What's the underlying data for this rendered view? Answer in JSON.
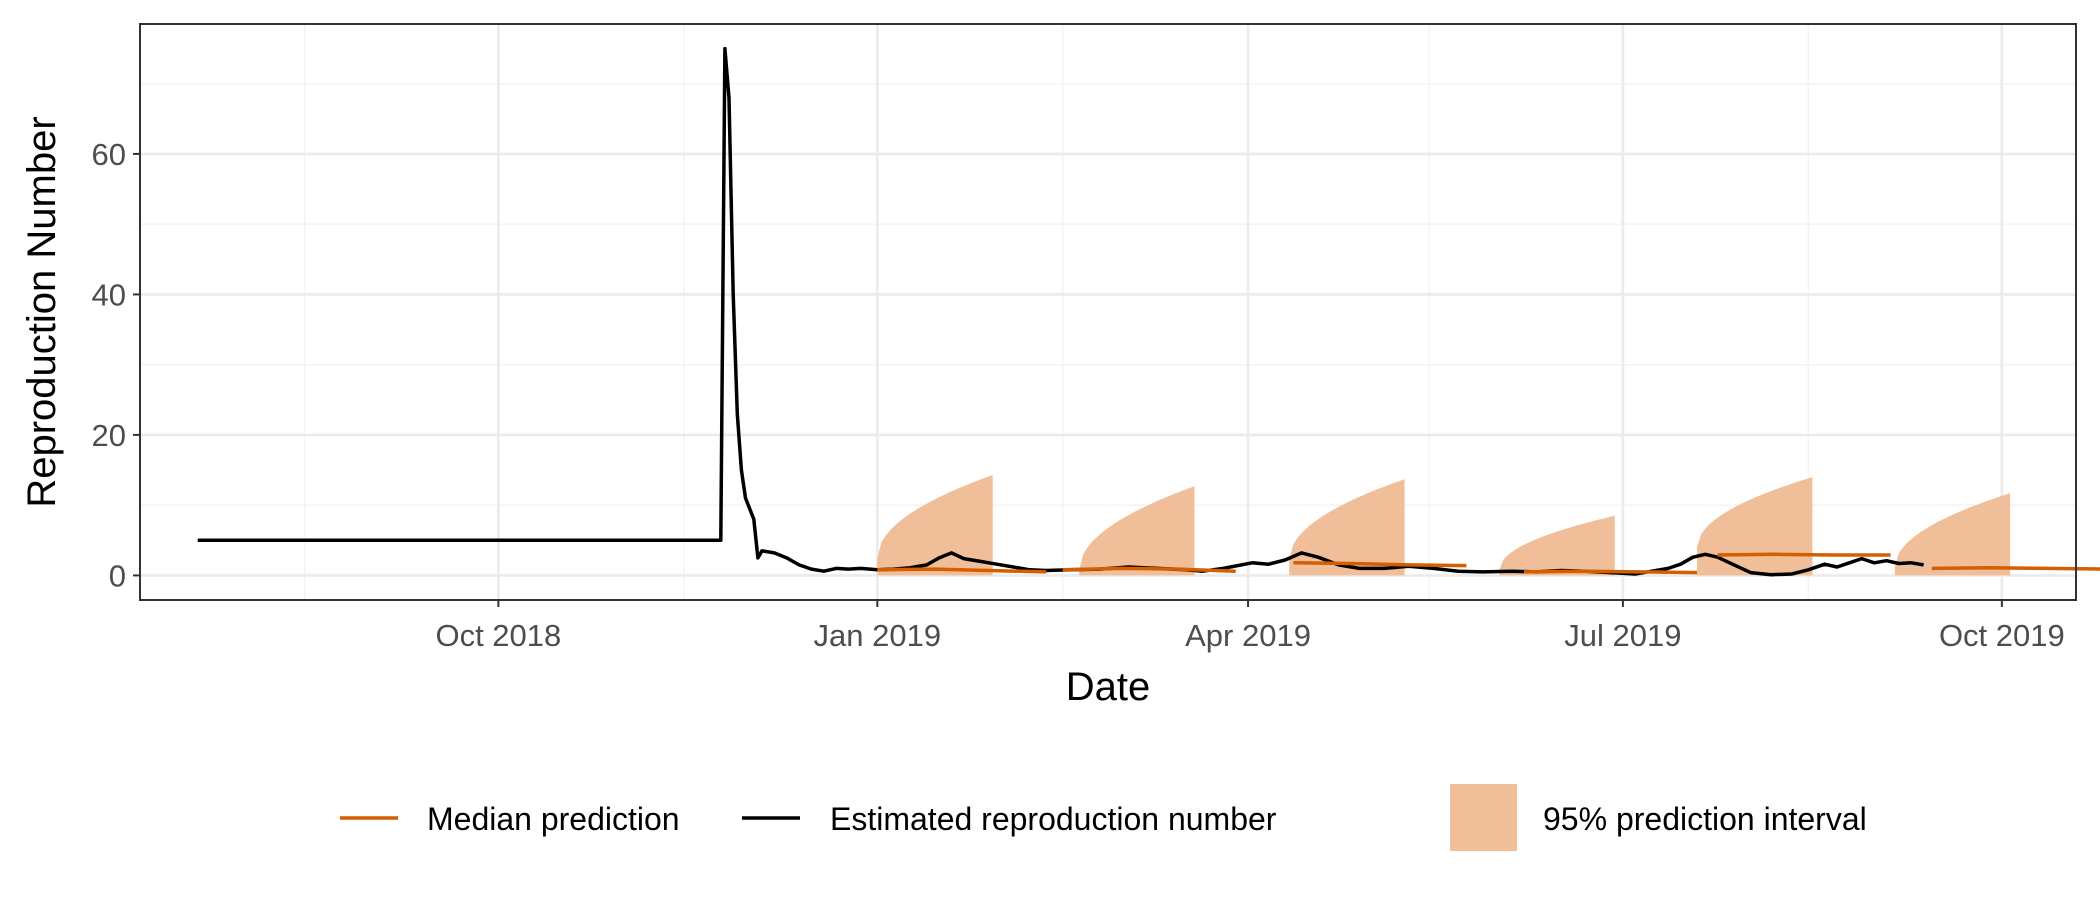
{
  "chart_data": {
    "type": "line",
    "title": "",
    "xlabel": "Date",
    "ylabel": "Reproduction Number",
    "x_type": "date",
    "xlim": [
      "2018-07-06",
      "2019-10-19"
    ],
    "ylim": [
      -3.5,
      78.5
    ],
    "x_ticks": [
      {
        "date": "2018-10-01",
        "label": "Oct 2018"
      },
      {
        "date": "2019-01-01",
        "label": "Jan 2019"
      },
      {
        "date": "2019-04-01",
        "label": "Apr 2019"
      },
      {
        "date": "2019-07-01",
        "label": "Jul 2019"
      },
      {
        "date": "2019-10-01",
        "label": "Oct 2019"
      }
    ],
    "x_minor_ticks": [
      "2018-08-15",
      "2018-11-15",
      "2019-02-15",
      "2019-05-15",
      "2019-08-15"
    ],
    "y_ticks": [
      0,
      20,
      40,
      60
    ],
    "y_minor_ticks": [
      10,
      30,
      50,
      70
    ],
    "grid": true,
    "legend_position": "bottom",
    "colors": {
      "estimated": "#000000",
      "median": "#d55e00",
      "interval": "#f0bf99",
      "panel_border": "#333333"
    },
    "legend": [
      {
        "key": "median",
        "label": "Median prediction",
        "symbol": "line"
      },
      {
        "key": "estimated",
        "label": "Estimated reproduction number",
        "symbol": "line"
      },
      {
        "key": "interval",
        "label": "95% prediction interval",
        "symbol": "fill"
      }
    ],
    "series": [
      {
        "name": "Estimated reproduction number",
        "key": "estimated",
        "points": [
          [
            "2018-07-20",
            5.0
          ],
          [
            "2018-11-24",
            5.0
          ],
          [
            "2018-11-25",
            75.0
          ],
          [
            "2018-11-26",
            68.0
          ],
          [
            "2018-11-27",
            40.0
          ],
          [
            "2018-11-28",
            23.0
          ],
          [
            "2018-11-29",
            15.0
          ],
          [
            "2018-11-30",
            11.0
          ],
          [
            "2018-12-02",
            8.0
          ],
          [
            "2018-12-03",
            2.5
          ],
          [
            "2018-12-04",
            3.5
          ],
          [
            "2018-12-07",
            3.2
          ],
          [
            "2018-12-10",
            2.5
          ],
          [
            "2018-12-13",
            1.5
          ],
          [
            "2018-12-16",
            0.9
          ],
          [
            "2018-12-19",
            0.6
          ],
          [
            "2018-12-22",
            1.0
          ],
          [
            "2018-12-25",
            0.9
          ],
          [
            "2018-12-28",
            1.0
          ],
          [
            "2019-01-01",
            0.8
          ],
          [
            "2019-01-05",
            0.9
          ],
          [
            "2019-01-09",
            1.1
          ],
          [
            "2019-01-13",
            1.5
          ],
          [
            "2019-01-16",
            2.5
          ],
          [
            "2019-01-19",
            3.2
          ],
          [
            "2019-01-22",
            2.4
          ],
          [
            "2019-01-26",
            2.0
          ],
          [
            "2019-01-30",
            1.6
          ],
          [
            "2019-02-03",
            1.2
          ],
          [
            "2019-02-07",
            0.8
          ],
          [
            "2019-02-11",
            0.7
          ],
          [
            "2019-02-17",
            0.8
          ],
          [
            "2019-02-24",
            0.9
          ],
          [
            "2019-03-03",
            1.2
          ],
          [
            "2019-03-10",
            1.0
          ],
          [
            "2019-03-17",
            0.8
          ],
          [
            "2019-03-21",
            0.6
          ],
          [
            "2019-03-26",
            1.0
          ],
          [
            "2019-04-02",
            1.8
          ],
          [
            "2019-04-06",
            1.6
          ],
          [
            "2019-04-10",
            2.2
          ],
          [
            "2019-04-14",
            3.2
          ],
          [
            "2019-04-18",
            2.6
          ],
          [
            "2019-04-23",
            1.5
          ],
          [
            "2019-04-28",
            1.0
          ],
          [
            "2019-05-04",
            1.0
          ],
          [
            "2019-05-10",
            1.3
          ],
          [
            "2019-05-16",
            1.0
          ],
          [
            "2019-05-22",
            0.6
          ],
          [
            "2019-05-28",
            0.5
          ],
          [
            "2019-06-04",
            0.6
          ],
          [
            "2019-06-10",
            0.5
          ],
          [
            "2019-06-16",
            0.7
          ],
          [
            "2019-06-22",
            0.6
          ],
          [
            "2019-06-28",
            0.4
          ],
          [
            "2019-07-04",
            0.2
          ],
          [
            "2019-07-08",
            0.6
          ],
          [
            "2019-07-12",
            1.0
          ],
          [
            "2019-07-15",
            1.6
          ],
          [
            "2019-07-18",
            2.6
          ],
          [
            "2019-07-21",
            3.0
          ],
          [
            "2019-07-24",
            2.6
          ],
          [
            "2019-07-28",
            1.5
          ],
          [
            "2019-08-01",
            0.4
          ],
          [
            "2019-08-06",
            0.1
          ],
          [
            "2019-08-11",
            0.2
          ],
          [
            "2019-08-15",
            0.8
          ],
          [
            "2019-08-19",
            1.6
          ],
          [
            "2019-08-22",
            1.2
          ],
          [
            "2019-08-25",
            1.8
          ],
          [
            "2019-08-28",
            2.4
          ],
          [
            "2019-08-31",
            1.8
          ],
          [
            "2019-09-03",
            2.1
          ],
          [
            "2019-09-06",
            1.7
          ],
          [
            "2019-09-09",
            1.8
          ],
          [
            "2019-09-12",
            1.5
          ]
        ]
      },
      {
        "name": "Median prediction",
        "key": "median",
        "segments": [
          [
            [
              "2019-01-01",
              0.8
            ],
            [
              "2019-01-15",
              0.9
            ],
            [
              "2019-01-28",
              0.7
            ],
            [
              "2019-02-11",
              0.5
            ]
          ],
          [
            [
              "2019-02-15",
              0.8
            ],
            [
              "2019-03-01",
              1.0
            ],
            [
              "2019-03-15",
              0.9
            ],
            [
              "2019-03-29",
              0.6
            ]
          ],
          [
            [
              "2019-04-12",
              1.8
            ],
            [
              "2019-04-26",
              1.7
            ],
            [
              "2019-05-10",
              1.5
            ],
            [
              "2019-05-24",
              1.4
            ]
          ],
          [
            [
              "2019-06-07",
              0.5
            ],
            [
              "2019-06-21",
              0.6
            ],
            [
              "2019-07-05",
              0.5
            ],
            [
              "2019-07-19",
              0.4
            ]
          ],
          [
            [
              "2019-07-24",
              2.9
            ],
            [
              "2019-08-07",
              3.0
            ],
            [
              "2019-08-21",
              2.9
            ],
            [
              "2019-09-04",
              2.9
            ]
          ],
          [
            [
              "2019-09-14",
              1.0
            ],
            [
              "2019-09-28",
              1.1
            ],
            [
              "2019-10-12",
              1.0
            ],
            [
              "2019-10-26",
              0.9
            ]
          ]
        ]
      },
      {
        "name": "95% prediction interval",
        "key": "interval",
        "bands": [
          {
            "start": "2019-01-01",
            "end": "2019-01-29",
            "lower": 0,
            "upper_start": 2.5,
            "upper_end": 14.3
          },
          {
            "start": "2019-02-19",
            "end": "2019-03-19",
            "lower": 0,
            "upper_start": 0.8,
            "upper_end": 12.7
          },
          {
            "start": "2019-04-11",
            "end": "2019-05-09",
            "lower": 0,
            "upper_start": 2.3,
            "upper_end": 13.7
          },
          {
            "start": "2019-06-01",
            "end": "2019-06-29",
            "lower": 0,
            "upper_start": 0.8,
            "upper_end": 8.5
          },
          {
            "start": "2019-07-19",
            "end": "2019-08-16",
            "lower": 0,
            "upper_start": 4.0,
            "upper_end": 14.0
          },
          {
            "start": "2019-09-05",
            "end": "2019-10-03",
            "lower": 0,
            "upper_start": 1.2,
            "upper_end": 11.7
          }
        ]
      }
    ]
  }
}
